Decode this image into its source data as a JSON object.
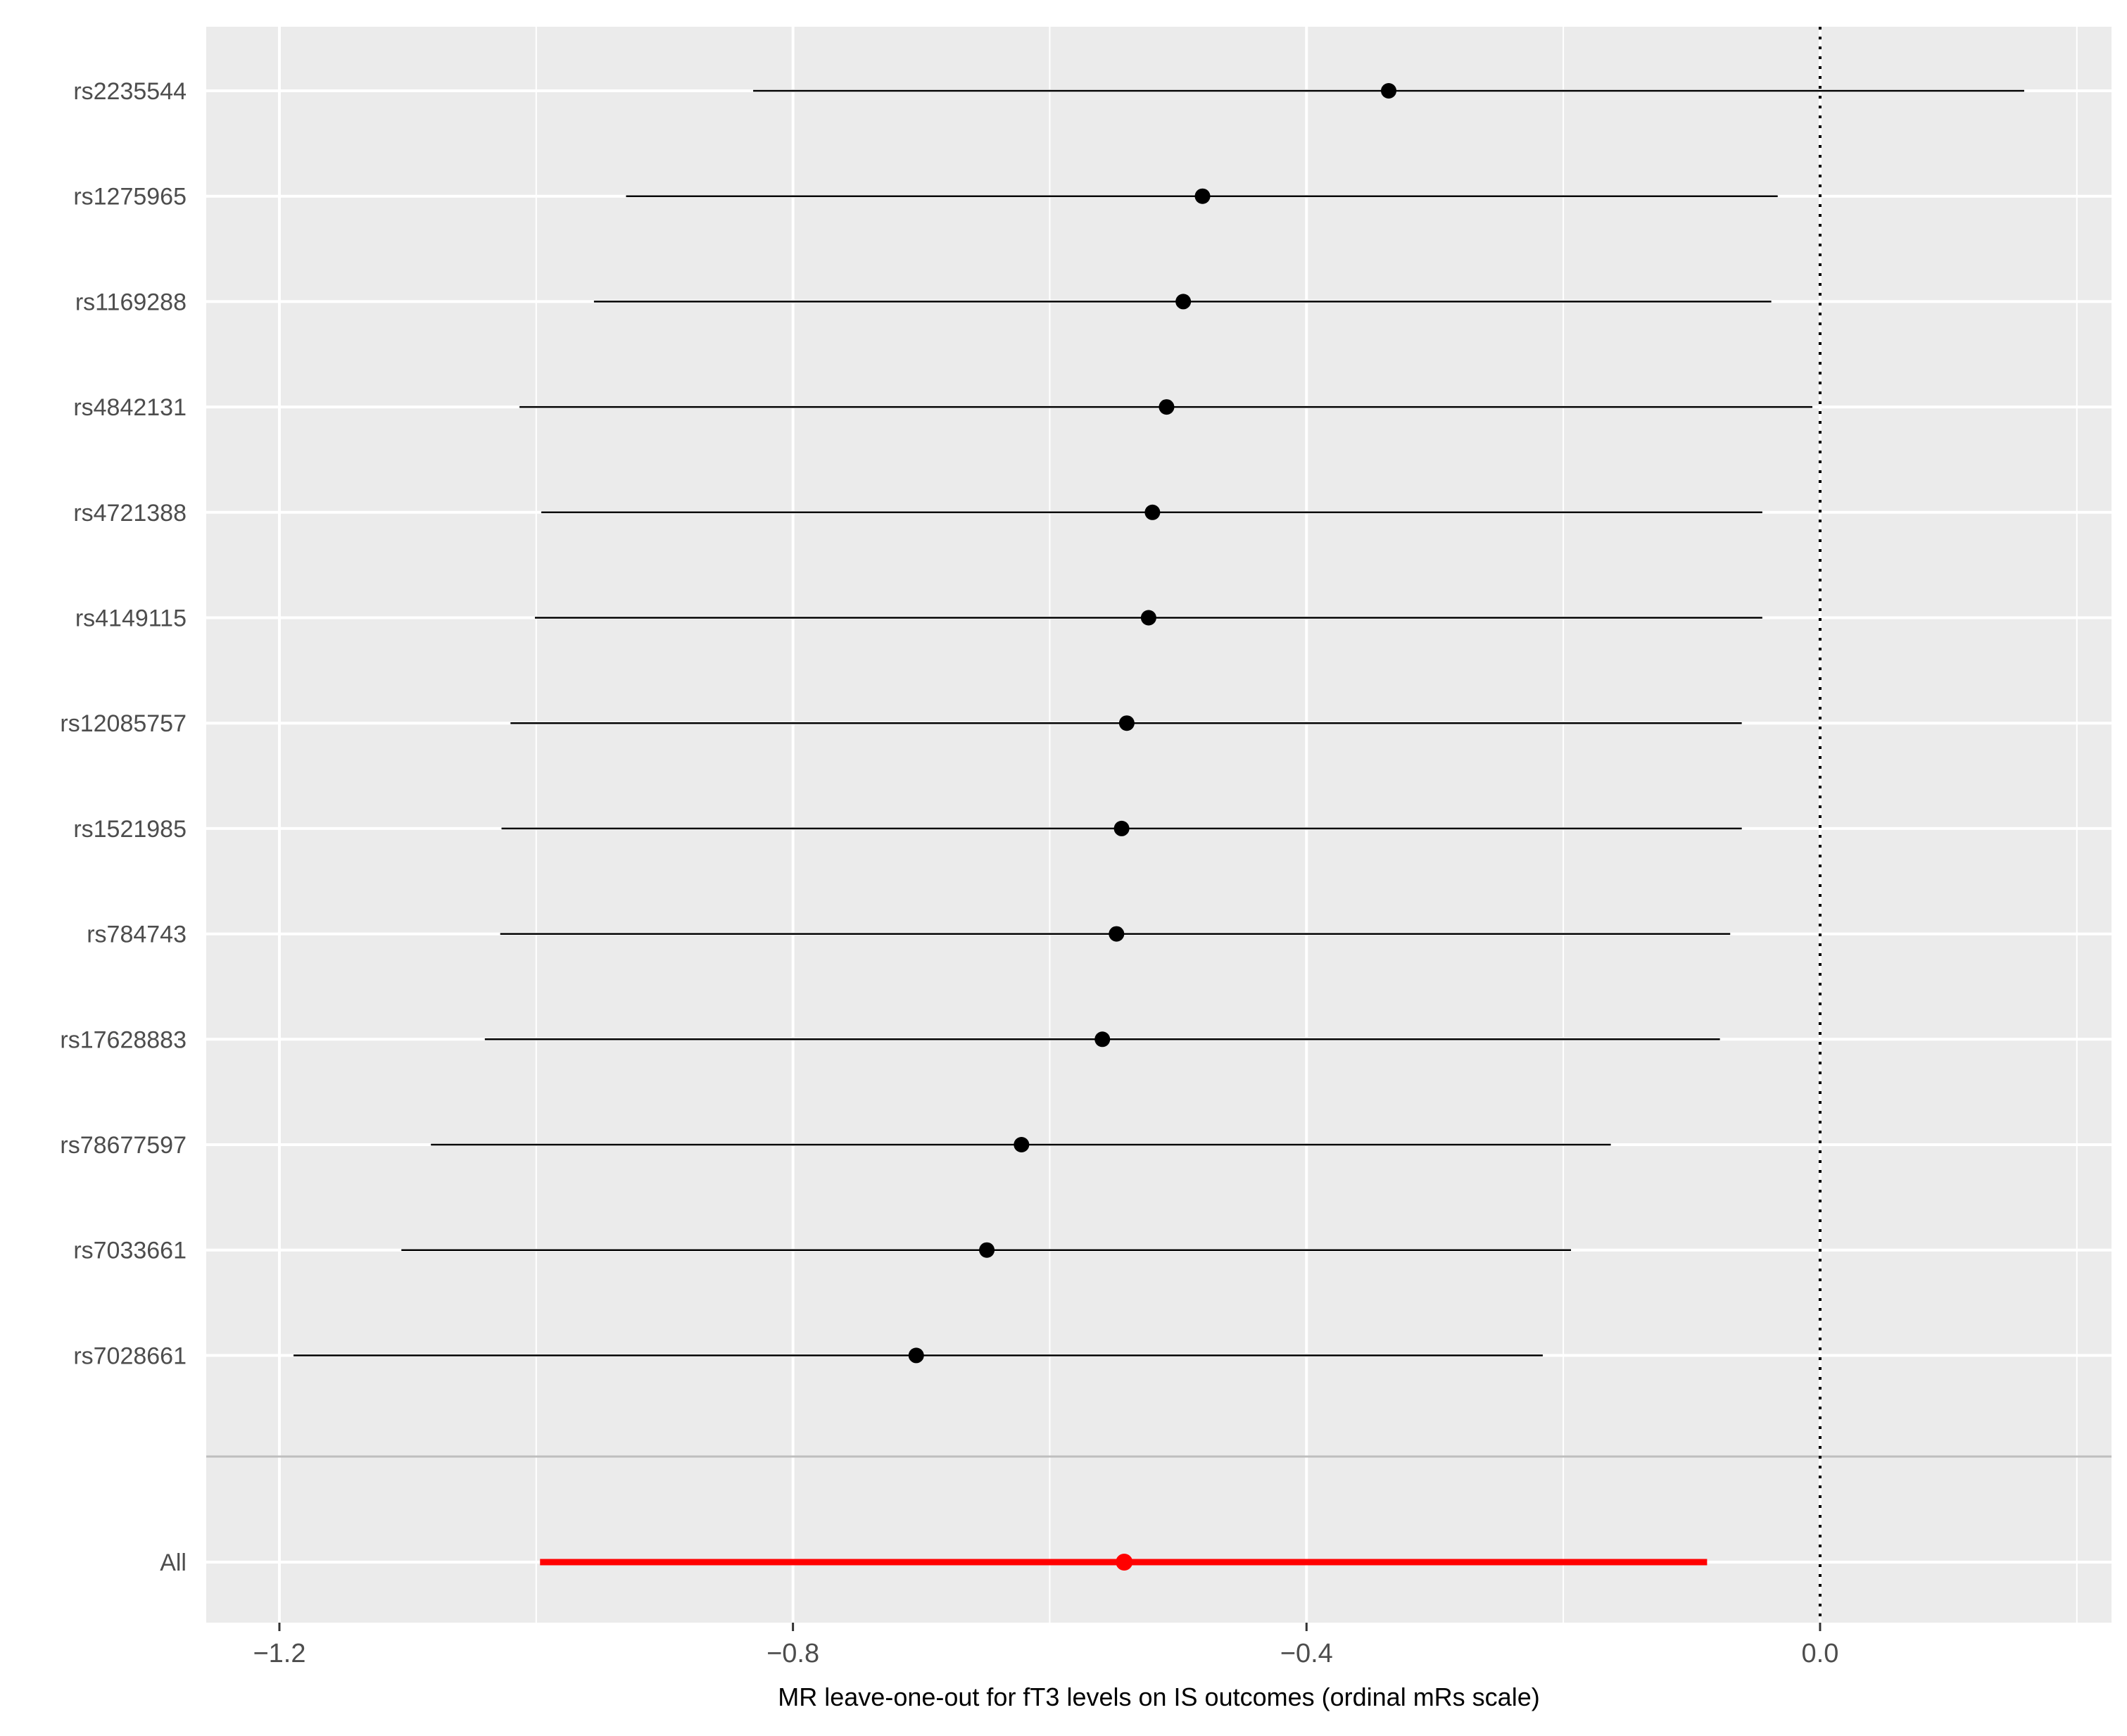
{
  "chart_data": {
    "type": "forest",
    "title": "",
    "xlabel": "MR leave-one-out for fT3 levels on IS outcomes (ordinal mRs scale)",
    "ylabel": "",
    "xlim": [
      -1.257,
      0.227
    ],
    "xticks": [
      -1.2,
      -0.8,
      -0.4,
      0.0
    ],
    "xtick_labels": [
      "−1.2",
      "−0.8",
      "−0.4",
      "0.0"
    ],
    "reference_line": 0.0,
    "grid": true,
    "background_color": "#ebebeb",
    "grid_color": "#ffffff",
    "point_color": "#000000",
    "summary_color": "#ff0000",
    "separator_color": "#bebebe",
    "rows": [
      {
        "label": "rs2235544",
        "estimate": -0.336,
        "lower": -0.831,
        "upper": 0.159
      },
      {
        "label": "rs1275965",
        "estimate": -0.481,
        "lower": -0.93,
        "upper": -0.033
      },
      {
        "label": "rs1169288",
        "estimate": -0.496,
        "lower": -0.955,
        "upper": -0.038
      },
      {
        "label": "rs4842131",
        "estimate": -0.509,
        "lower": -1.013,
        "upper": -0.006
      },
      {
        "label": "rs4721388",
        "estimate": -0.52,
        "lower": -0.996,
        "upper": -0.045
      },
      {
        "label": "rs4149115",
        "estimate": -0.523,
        "lower": -1.001,
        "upper": -0.045
      },
      {
        "label": "rs12085757",
        "estimate": -0.54,
        "lower": -1.02,
        "upper": -0.061
      },
      {
        "label": "rs1521985",
        "estimate": -0.544,
        "lower": -1.027,
        "upper": -0.061
      },
      {
        "label": "rs784743",
        "estimate": -0.548,
        "lower": -1.028,
        "upper": -0.07
      },
      {
        "label": "rs17628883",
        "estimate": -0.559,
        "lower": -1.04,
        "upper": -0.078
      },
      {
        "label": "rs78677597",
        "estimate": -0.622,
        "lower": -1.082,
        "upper": -0.163
      },
      {
        "label": "rs7033661",
        "estimate": -0.649,
        "lower": -1.105,
        "upper": -0.194
      },
      {
        "label": "rs7028661",
        "estimate": -0.704,
        "lower": -1.189,
        "upper": -0.216
      }
    ],
    "summary": {
      "label": "All",
      "estimate": -0.542,
      "lower": -0.997,
      "upper": -0.088
    }
  }
}
